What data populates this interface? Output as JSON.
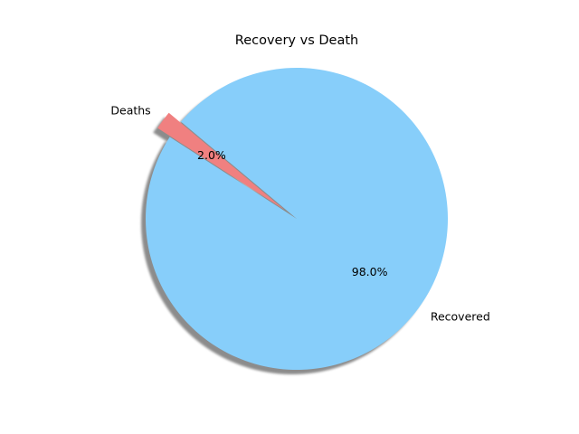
{
  "chart_data": {
    "type": "pie",
    "title": "Recovery vs Death",
    "categories": [
      "Deaths",
      "Recovered"
    ],
    "values": [
      2.0,
      98.0
    ],
    "percent_labels": [
      "2.0%",
      "98.0%"
    ],
    "colors": [
      "#f08080",
      "#87cefa"
    ],
    "shadow": true,
    "exploded": [
      "Deaths"
    ]
  }
}
